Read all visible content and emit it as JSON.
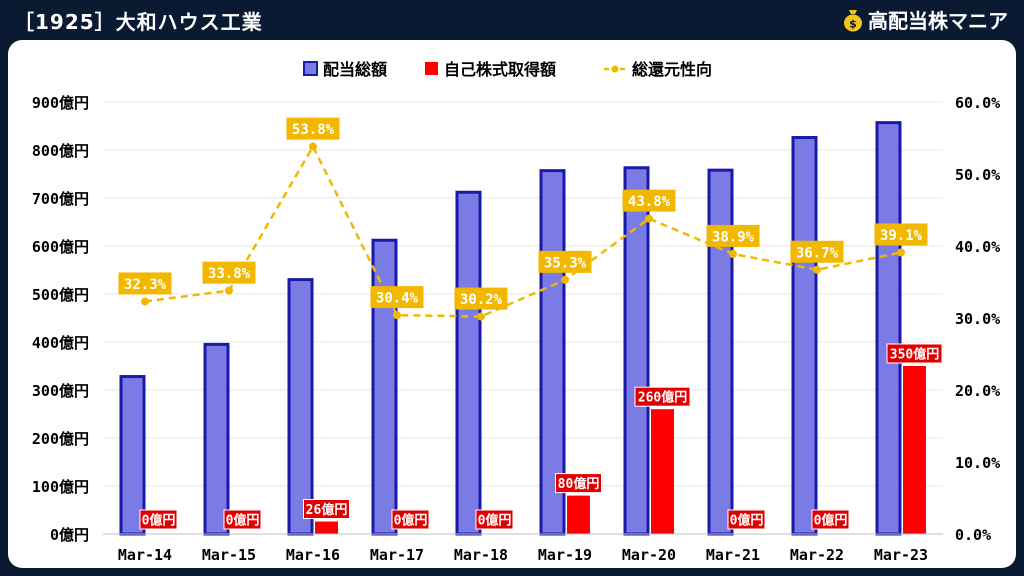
{
  "header": {
    "title": "［1925］大和ハウス工業",
    "brand_name": "高配当株マニア",
    "brand_icon": "money-bag-icon",
    "background_color": "#0b1a33"
  },
  "chart_data": {
    "type": "bar",
    "categories": [
      "Mar-14",
      "Mar-15",
      "Mar-16",
      "Mar-17",
      "Mar-18",
      "Mar-19",
      "Mar-20",
      "Mar-21",
      "Mar-22",
      "Mar-23"
    ],
    "series": [
      {
        "name": "配当総額",
        "kind": "bar",
        "axis": "left",
        "color": "#7b7be6",
        "stroke": "#1a1aa8",
        "values": [
          328,
          395,
          530,
          612,
          712,
          757,
          763,
          758,
          826,
          857
        ]
      },
      {
        "name": "自己株式取得額",
        "kind": "bar",
        "axis": "left",
        "color": "#ff0000",
        "values": [
          0,
          0,
          26,
          0,
          0,
          80,
          260,
          0,
          0,
          350
        ],
        "labels": [
          "0億円",
          "0億円",
          "26億円",
          "0億円",
          "0億円",
          "80億円",
          "260億円",
          "0億円",
          "0億円",
          "350億円"
        ]
      },
      {
        "name": "総還元性向",
        "kind": "line",
        "axis": "right",
        "color": "#f2b800",
        "dashed": true,
        "values": [
          32.3,
          33.8,
          53.8,
          30.4,
          30.2,
          35.3,
          43.8,
          38.9,
          36.7,
          39.1
        ],
        "labels": [
          "32.3%",
          "33.8%",
          "53.8%",
          "30.4%",
          "30.2%",
          "35.3%",
          "43.8%",
          "38.9%",
          "36.7%",
          "39.1%"
        ]
      }
    ],
    "y_left": {
      "ylim": [
        0,
        900
      ],
      "ticks": [
        "0億円",
        "100億円",
        "200億円",
        "300億円",
        "400億円",
        "500億円",
        "600億円",
        "700億円",
        "800億円",
        "900億円"
      ]
    },
    "y_right": {
      "ylim": [
        0,
        60
      ],
      "ticks": [
        "0.0%",
        "10.0%",
        "20.0%",
        "30.0%",
        "40.0%",
        "50.0%",
        "60.0%"
      ]
    },
    "legend": {
      "position": "top"
    },
    "grid": true
  }
}
